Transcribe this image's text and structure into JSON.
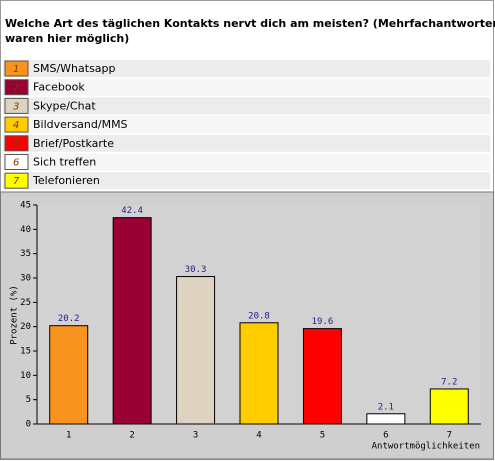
{
  "chart_data": {
    "type": "bar",
    "title": [
      "Welche Art des täglichen Kontakts nervt dich am meisten? (Mehrfachantworten",
      "waren hier möglich)"
    ],
    "categories": [
      "1",
      "2",
      "3",
      "4",
      "5",
      "6",
      "7"
    ],
    "category_names": [
      "SMS/Whatsapp",
      "Facebook",
      "Skype/Chat",
      "Bildversand/MMS",
      "Brief/Postkarte",
      "Sich treffen",
      "Telefonieren"
    ],
    "colors": [
      "#f7931e",
      "#990033",
      "#ddd3c0",
      "#ffcc00",
      "#ff0000",
      "#ffffff",
      "#ffff00"
    ],
    "values": [
      20.2,
      42.4,
      30.3,
      20.8,
      19.6,
      2.1,
      7.2
    ],
    "y_label": "Prozent (%)",
    "x_label": "Antwortmöglichkeiten",
    "ylim": [
      0,
      45
    ],
    "yticks": [
      0,
      5,
      10,
      15,
      20,
      25,
      30,
      35,
      40,
      45
    ]
  }
}
